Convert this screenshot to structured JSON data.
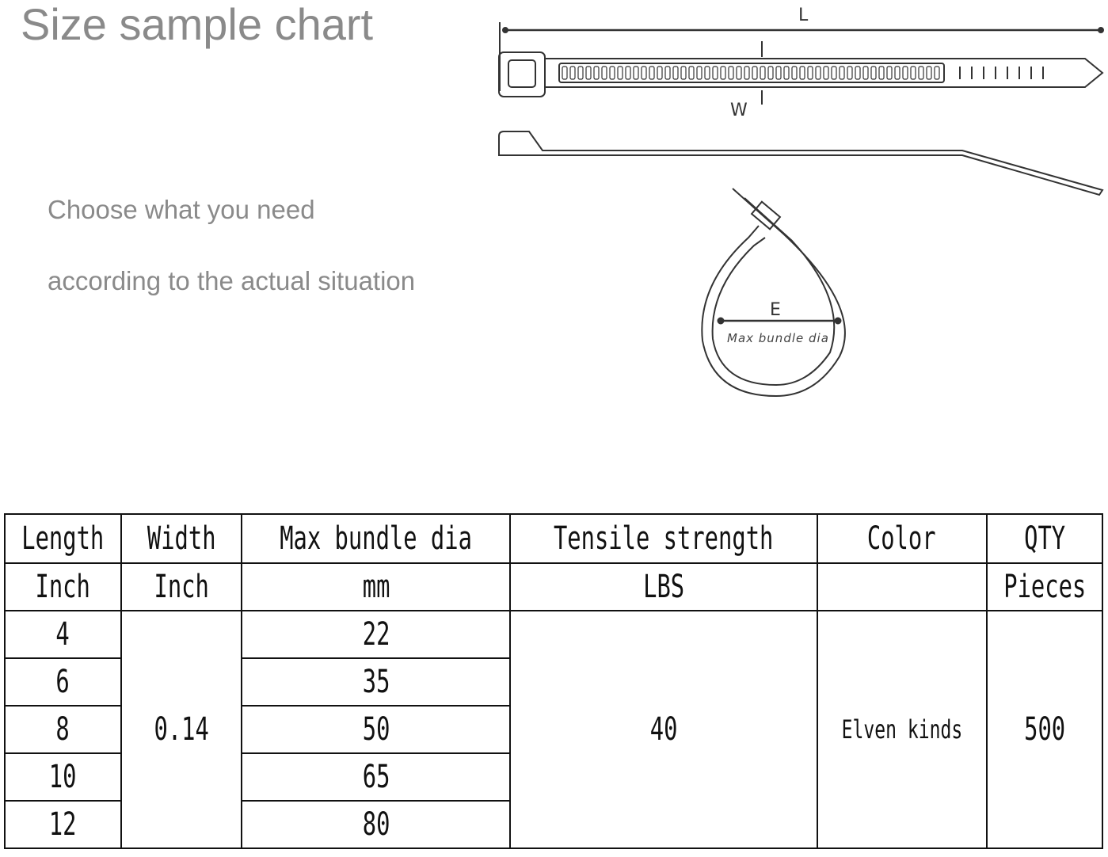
{
  "header": {
    "title": "Size sample chart",
    "subtitle_line1": "Choose what you need",
    "subtitle_line2": "according to the actual situation"
  },
  "diagram": {
    "length_label": "L",
    "width_label": "W",
    "bundle_label": "E",
    "bundle_caption": "Max bundle dia"
  },
  "table": {
    "headers": [
      "Length",
      "Width",
      "Max bundle dia",
      "Tensile strength",
      "Color",
      "QTY"
    ],
    "units": [
      "Inch",
      "Inch",
      "mm",
      "LBS",
      "",
      "Pieces"
    ],
    "lengths": [
      "4",
      "6",
      "8",
      "10",
      "12"
    ],
    "width": "0.14",
    "max_bundle_dia": [
      "22",
      "35",
      "50",
      "65",
      "80"
    ],
    "tensile_strength": "40",
    "color": "Elven kinds",
    "qty": "500"
  }
}
